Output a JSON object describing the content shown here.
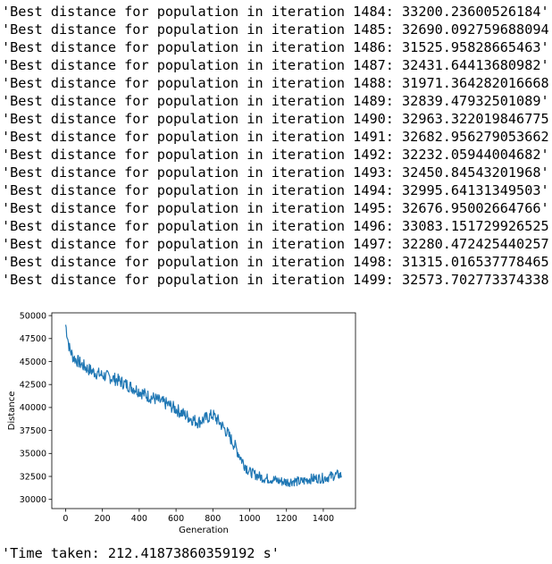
{
  "output": {
    "log_lines": [
      "'Best distance for population in iteration 1484: 33200.23600526184'",
      "'Best distance for population in iteration 1485: 32690.092759688094'",
      "'Best distance for population in iteration 1486: 31525.95828665463'",
      "'Best distance for population in iteration 1487: 32431.64413680982'",
      "'Best distance for population in iteration 1488: 31971.364282016668'",
      "'Best distance for population in iteration 1489: 32839.47932501089'",
      "'Best distance for population in iteration 1490: 32963.322019846775'",
      "'Best distance for population in iteration 1491: 32682.956279053662'",
      "'Best distance for population in iteration 1492: 32232.05944004682'",
      "'Best distance for population in iteration 1493: 32450.84543201968'",
      "'Best distance for population in iteration 1494: 32995.64131349503'",
      "'Best distance for population in iteration 1495: 32676.95002664766'",
      "'Best distance for population in iteration 1496: 33083.151729926525'",
      "'Best distance for population in iteration 1497: 32280.472425440257'",
      "'Best distance for population in iteration 1498: 31315.016537778465'",
      "'Best distance for population in iteration 1499: 32573.702773374338'"
    ],
    "time_taken": "'Time taken: 212.41873860359192 s'"
  },
  "chart_data": {
    "type": "line",
    "title": "",
    "xlabel": "Generation",
    "ylabel": "Distance",
    "xlim": [
      -75,
      1575
    ],
    "ylim": [
      29000,
      50300
    ],
    "x_ticks": [
      0,
      200,
      400,
      600,
      800,
      1000,
      1200,
      1400
    ],
    "y_ticks": [
      30000,
      32500,
      35000,
      37500,
      40000,
      42500,
      45000,
      47500,
      50000
    ],
    "x_tick_labels": [
      "0",
      "200",
      "400",
      "600",
      "800",
      "1000",
      "1200",
      "1400"
    ],
    "y_tick_labels": [
      "30000",
      "32500",
      "35000",
      "37500",
      "40000",
      "42500",
      "45000",
      "47500",
      "50000"
    ],
    "grid": false,
    "line_color": "#1f77b4",
    "series": [
      {
        "x": [
          0,
          20,
          40,
          80,
          120,
          160,
          200,
          240,
          280,
          320,
          360,
          400,
          440,
          480,
          520,
          560,
          600,
          640,
          680,
          720,
          760,
          800,
          840,
          880,
          920,
          960,
          1000,
          1040,
          1080,
          1120,
          1160,
          1200,
          1240,
          1280,
          1320,
          1360,
          1400,
          1440,
          1480,
          1499
        ],
        "y": [
          49000,
          46500,
          45500,
          44800,
          44200,
          43800,
          43500,
          43300,
          43000,
          42600,
          42200,
          41800,
          41300,
          41000,
          40600,
          40300,
          39800,
          39300,
          38800,
          38400,
          38800,
          39200,
          38300,
          37200,
          35800,
          34200,
          33000,
          32600,
          32300,
          32200,
          32000,
          31900,
          32000,
          31900,
          32200,
          32300,
          32300,
          32500,
          32700,
          32574
        ]
      }
    ]
  }
}
